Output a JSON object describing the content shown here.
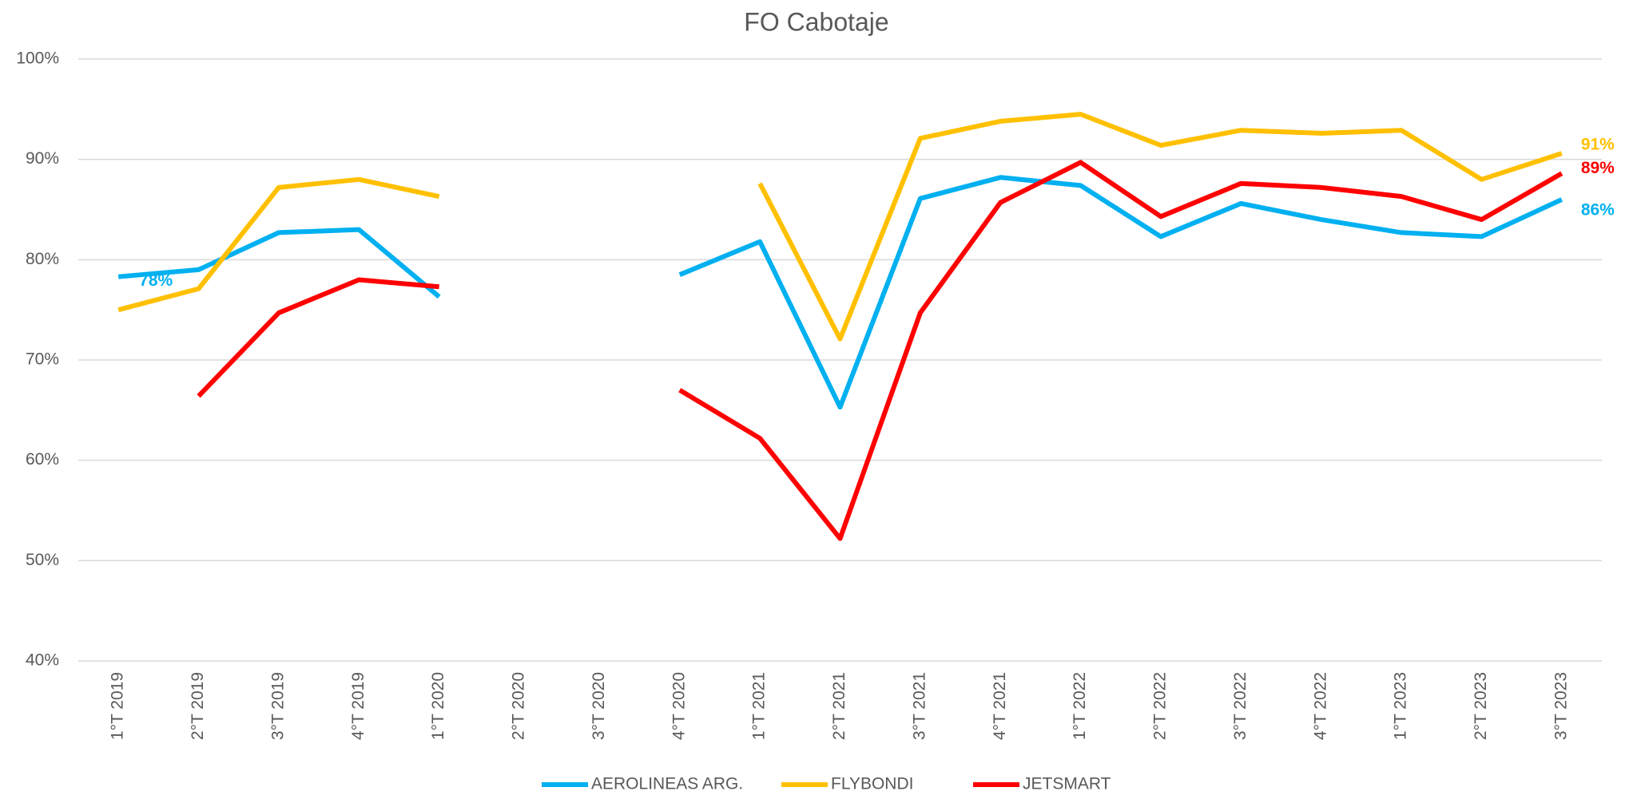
{
  "chart_data": {
    "type": "line",
    "title": "FO Cabotaje",
    "categories": [
      "1°T 2019",
      "2°T 2019",
      "3°T 2019",
      "4°T 2019",
      "1°T 2020",
      "2°T 2020",
      "3°T 2020",
      "4°T 2020",
      "1°T 2021",
      "2°T 2021",
      "3°T 2021",
      "4°T 2021",
      "1°T 2022",
      "2°T 2022",
      "3°T 2022",
      "4°T 2022",
      "1°T 2023",
      "2°T 2023",
      "3°T 2023"
    ],
    "series": [
      {
        "name": "AEROLINEAS ARG.",
        "color": "#00b0f0",
        "values": [
          78.3,
          79.0,
          82.7,
          83.0,
          76.3,
          null,
          null,
          78.5,
          81.8,
          65.3,
          86.1,
          88.2,
          87.4,
          82.3,
          85.6,
          84.0,
          82.7,
          82.3,
          86.0
        ],
        "value_labels": [
          "78%",
          null,
          null,
          null,
          null,
          null,
          null,
          null,
          null,
          null,
          null,
          null,
          null,
          null,
          null,
          null,
          null,
          null,
          "86%"
        ]
      },
      {
        "name": "FLYBONDI",
        "color": "#ffc000",
        "values": [
          75.0,
          77.1,
          87.2,
          88.0,
          86.3,
          null,
          null,
          null,
          87.6,
          72.1,
          92.1,
          93.8,
          94.5,
          91.4,
          92.9,
          92.6,
          92.9,
          88.0,
          90.6
        ],
        "value_labels": [
          null,
          null,
          null,
          null,
          null,
          null,
          null,
          null,
          null,
          null,
          null,
          null,
          null,
          null,
          null,
          null,
          null,
          null,
          "91%"
        ]
      },
      {
        "name": "JETSMART",
        "color": "#ff0000",
        "values": [
          null,
          66.4,
          74.7,
          78.0,
          77.3,
          null,
          null,
          67.0,
          62.2,
          52.2,
          74.7,
          85.7,
          89.7,
          84.3,
          87.6,
          87.2,
          86.3,
          84.0,
          88.6
        ],
        "value_labels": [
          null,
          null,
          null,
          null,
          null,
          null,
          null,
          null,
          null,
          null,
          null,
          null,
          null,
          null,
          null,
          null,
          null,
          null,
          "89%"
        ]
      }
    ],
    "ylim": [
      40,
      100
    ],
    "yticks": [
      {
        "value": 40,
        "label": "40%"
      },
      {
        "value": 50,
        "label": "50%"
      },
      {
        "value": 60,
        "label": "60%"
      },
      {
        "value": 70,
        "label": "70%"
      },
      {
        "value": 80,
        "label": "80%"
      },
      {
        "value": 90,
        "label": "90%"
      },
      {
        "value": 100,
        "label": "100%"
      }
    ],
    "grid": true,
    "legend": "bottom"
  }
}
